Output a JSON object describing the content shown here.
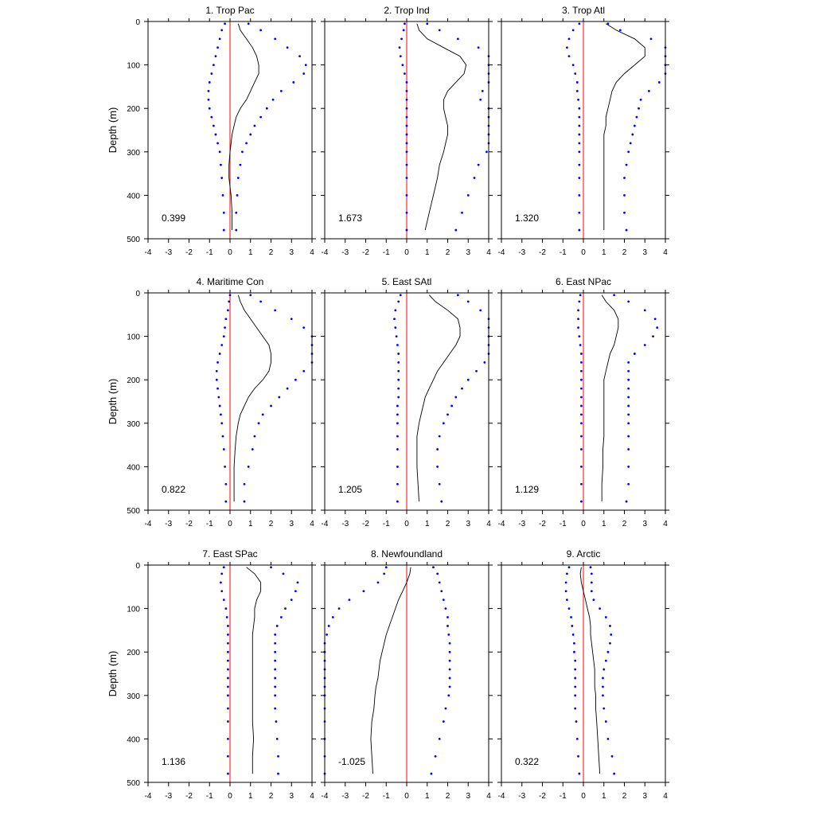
{
  "colors": {
    "mean_line": "#000000",
    "bound_dots": "#0000ff",
    "zero_line": "#ff0000",
    "axis": "#000000"
  },
  "shared_axes": {
    "ylabel": "Depth (m)",
    "xlim": [
      -4,
      4
    ],
    "ylim": [
      0,
      500
    ],
    "y_inverted": true,
    "xticks": [
      "-4",
      "-3",
      "-2",
      "-1",
      "0",
      "1",
      "2",
      "3",
      "4"
    ],
    "yticks": [
      "0",
      "100",
      "200",
      "300",
      "400",
      "500"
    ]
  },
  "chart_data": [
    {
      "type": "line",
      "title": "1. Trop Pac",
      "annotation": "0.399",
      "depth": [
        5,
        20,
        40,
        60,
        80,
        100,
        120,
        140,
        160,
        180,
        200,
        220,
        240,
        260,
        280,
        300,
        330,
        360,
        400,
        440,
        480
      ],
      "series": [
        {
          "values": [
            0.4,
            0.5,
            0.8,
            1.1,
            1.3,
            1.4,
            1.4,
            1.2,
            1.0,
            0.8,
            0.5,
            0.3,
            0.2,
            0.1,
            0.05,
            0.0,
            -0.05,
            -0.05,
            0.05,
            0.1,
            0.1
          ]
        },
        {
          "values": [
            -0.25,
            -0.4,
            -0.5,
            -0.6,
            -0.7,
            -0.8,
            -0.9,
            -1.0,
            -1.05,
            -1.05,
            -1.0,
            -0.9,
            -0.8,
            -0.7,
            -0.6,
            -0.5,
            -0.45,
            -0.4,
            -0.35,
            -0.3,
            -0.3
          ]
        },
        {
          "values": [
            0.9,
            1.5,
            2.2,
            2.8,
            3.4,
            3.7,
            3.6,
            3.1,
            2.5,
            2.1,
            1.8,
            1.5,
            1.2,
            1.0,
            0.8,
            0.6,
            0.5,
            0.4,
            0.35,
            0.3,
            0.3
          ]
        }
      ]
    },
    {
      "type": "line",
      "title": "2. Trop Ind",
      "annotation": "1.673",
      "depth": [
        5,
        20,
        40,
        60,
        80,
        100,
        120,
        140,
        160,
        180,
        200,
        220,
        240,
        260,
        280,
        300,
        330,
        360,
        400,
        440,
        480
      ],
      "series": [
        {
          "values": [
            0.5,
            0.6,
            1.0,
            1.8,
            2.6,
            2.9,
            2.8,
            2.4,
            2.0,
            1.8,
            1.8,
            1.9,
            2.0,
            2.0,
            1.9,
            1.8,
            1.6,
            1.5,
            1.3,
            1.1,
            0.9
          ]
        },
        {
          "values": [
            -0.1,
            -0.15,
            -0.25,
            -0.35,
            -0.3,
            -0.2,
            -0.1,
            0.0,
            0.0,
            0.0,
            0.0,
            0.0,
            0.0,
            0.0,
            0.0,
            0.0,
            0.0,
            0.0,
            0.0,
            0.0,
            0.0
          ]
        },
        {
          "values": [
            1.0,
            1.6,
            2.5,
            3.5,
            4.2,
            4.5,
            4.6,
            4.3,
            3.7,
            3.6,
            4.0,
            4.3,
            4.4,
            4.3,
            4.1,
            3.9,
            3.5,
            3.3,
            3.0,
            2.7,
            2.4
          ]
        }
      ]
    },
    {
      "type": "line",
      "title": "3. Trop Atl",
      "annotation": "1.320",
      "depth": [
        5,
        20,
        40,
        60,
        80,
        100,
        120,
        140,
        160,
        180,
        200,
        220,
        240,
        260,
        280,
        300,
        330,
        360,
        400,
        440,
        480
      ],
      "series": [
        {
          "values": [
            1.1,
            1.6,
            2.5,
            3.0,
            3.0,
            2.5,
            2.0,
            1.6,
            1.4,
            1.3,
            1.2,
            1.1,
            1.1,
            1.0,
            1.0,
            1.0,
            1.0,
            1.0,
            1.0,
            1.0,
            1.0
          ]
        },
        {
          "values": [
            -0.2,
            -0.5,
            -0.7,
            -0.8,
            -0.7,
            -0.5,
            -0.4,
            -0.3,
            -0.3,
            -0.25,
            -0.2,
            -0.2,
            -0.2,
            -0.2,
            -0.2,
            -0.2,
            -0.2,
            -0.2,
            -0.2,
            -0.2,
            -0.2
          ]
        },
        {
          "values": [
            1.2,
            1.8,
            3.3,
            4.2,
            4.5,
            4.4,
            4.0,
            3.7,
            3.2,
            2.8,
            2.7,
            2.6,
            2.5,
            2.4,
            2.3,
            2.2,
            2.1,
            2.0,
            2.0,
            2.0,
            2.1
          ]
        }
      ]
    },
    {
      "type": "line",
      "title": "4. Maritime Con",
      "annotation": "0.822",
      "depth": [
        5,
        20,
        40,
        60,
        80,
        100,
        120,
        140,
        160,
        180,
        200,
        220,
        240,
        260,
        280,
        300,
        330,
        360,
        400,
        440,
        480
      ],
      "series": [
        {
          "values": [
            0.4,
            0.5,
            0.7,
            1.0,
            1.3,
            1.6,
            1.9,
            2.0,
            2.0,
            1.9,
            1.6,
            1.2,
            0.9,
            0.7,
            0.5,
            0.4,
            0.3,
            0.25,
            0.2,
            0.2,
            0.2
          ]
        },
        {
          "values": [
            0.0,
            -0.05,
            -0.1,
            -0.2,
            -0.25,
            -0.3,
            -0.4,
            -0.5,
            -0.6,
            -0.65,
            -0.65,
            -0.6,
            -0.55,
            -0.5,
            -0.45,
            -0.4,
            -0.35,
            -0.3,
            -0.25,
            -0.2,
            -0.2
          ]
        },
        {
          "values": [
            1.0,
            1.5,
            2.2,
            3.0,
            3.6,
            4.2,
            4.4,
            4.3,
            4.0,
            3.6,
            3.2,
            2.8,
            2.4,
            2.0,
            1.6,
            1.4,
            1.2,
            1.1,
            0.9,
            0.7,
            0.7
          ]
        }
      ]
    },
    {
      "type": "line",
      "title": "5. East SAtl",
      "annotation": "1.205",
      "depth": [
        5,
        20,
        40,
        60,
        80,
        100,
        120,
        140,
        160,
        180,
        200,
        220,
        240,
        260,
        280,
        300,
        330,
        360,
        400,
        440,
        480
      ],
      "series": [
        {
          "values": [
            1.1,
            1.4,
            2.0,
            2.5,
            2.6,
            2.6,
            2.4,
            2.1,
            1.8,
            1.5,
            1.3,
            1.1,
            0.9,
            0.8,
            0.7,
            0.6,
            0.5,
            0.5,
            0.5,
            0.55,
            0.6
          ]
        },
        {
          "values": [
            -0.3,
            -0.4,
            -0.55,
            -0.6,
            -0.55,
            -0.5,
            -0.45,
            -0.4,
            -0.4,
            -0.4,
            -0.4,
            -0.4,
            -0.4,
            -0.45,
            -0.45,
            -0.45,
            -0.45,
            -0.45,
            -0.45,
            -0.45,
            -0.45
          ]
        },
        {
          "values": [
            2.5,
            3.0,
            3.6,
            4.2,
            4.6,
            4.6,
            4.4,
            4.2,
            3.8,
            3.4,
            3.0,
            2.7,
            2.4,
            2.2,
            2.0,
            1.8,
            1.6,
            1.5,
            1.5,
            1.6,
            1.7
          ]
        }
      ]
    },
    {
      "type": "line",
      "title": "6. East NPac",
      "annotation": "1.129",
      "depth": [
        5,
        20,
        40,
        60,
        80,
        100,
        120,
        140,
        160,
        180,
        200,
        220,
        240,
        260,
        280,
        300,
        330,
        360,
        400,
        440,
        480
      ],
      "series": [
        {
          "values": [
            0.9,
            1.1,
            1.5,
            1.7,
            1.7,
            1.6,
            1.5,
            1.3,
            1.2,
            1.1,
            1.0,
            1.0,
            1.0,
            1.0,
            1.0,
            1.0,
            1.0,
            0.95,
            0.95,
            0.9,
            0.9
          ]
        },
        {
          "values": [
            -0.15,
            -0.2,
            -0.25,
            -0.25,
            -0.25,
            -0.2,
            -0.15,
            -0.1,
            -0.1,
            -0.1,
            -0.1,
            -0.1,
            -0.1,
            -0.1,
            -0.1,
            -0.1,
            -0.1,
            -0.1,
            -0.1,
            -0.1,
            -0.1
          ]
        },
        {
          "values": [
            1.5,
            2.2,
            3.0,
            3.5,
            3.6,
            3.4,
            3.0,
            2.5,
            2.2,
            2.2,
            2.2,
            2.2,
            2.2,
            2.2,
            2.2,
            2.2,
            2.2,
            2.2,
            2.2,
            2.2,
            2.1
          ]
        }
      ]
    },
    {
      "type": "line",
      "title": "7. East SPac",
      "annotation": "1.136",
      "depth": [
        5,
        20,
        40,
        60,
        80,
        100,
        120,
        140,
        160,
        180,
        200,
        220,
        240,
        260,
        280,
        300,
        330,
        360,
        400,
        440,
        480
      ],
      "series": [
        {
          "values": [
            0.8,
            1.2,
            1.5,
            1.5,
            1.3,
            1.2,
            1.2,
            1.15,
            1.1,
            1.1,
            1.1,
            1.1,
            1.1,
            1.1,
            1.1,
            1.1,
            1.1,
            1.1,
            1.15,
            1.1,
            1.1
          ]
        },
        {
          "values": [
            -0.3,
            -0.4,
            -0.45,
            -0.4,
            -0.3,
            -0.2,
            -0.15,
            -0.1,
            -0.1,
            -0.1,
            -0.1,
            -0.1,
            -0.1,
            -0.1,
            -0.1,
            -0.1,
            -0.1,
            -0.1,
            -0.1,
            -0.1,
            -0.1
          ]
        },
        {
          "values": [
            2.0,
            2.6,
            3.3,
            3.2,
            3.0,
            2.7,
            2.5,
            2.3,
            2.2,
            2.2,
            2.2,
            2.2,
            2.2,
            2.2,
            2.2,
            2.2,
            2.2,
            2.25,
            2.3,
            2.35,
            2.35
          ]
        }
      ]
    },
    {
      "type": "line",
      "title": "8. Newfoundland",
      "annotation": "-1.025",
      "depth": [
        5,
        20,
        40,
        60,
        80,
        100,
        120,
        140,
        160,
        180,
        200,
        220,
        240,
        260,
        280,
        300,
        330,
        360,
        400,
        440,
        480
      ],
      "series": [
        {
          "values": [
            0.2,
            0.15,
            0.0,
            -0.2,
            -0.4,
            -0.55,
            -0.7,
            -0.85,
            -1.0,
            -1.1,
            -1.2,
            -1.3,
            -1.35,
            -1.4,
            -1.5,
            -1.55,
            -1.6,
            -1.7,
            -1.75,
            -1.7,
            -1.65
          ]
        },
        {
          "values": [
            -1.0,
            -1.1,
            -1.4,
            -2.1,
            -2.8,
            -3.3,
            -3.6,
            -3.8,
            -3.9,
            -4.0,
            -4.1,
            -4.1,
            -4.1,
            -4.1,
            -4.1,
            -4.1,
            -4.1,
            -4.1,
            -4.1,
            -4.1,
            -4.1
          ]
        },
        {
          "values": [
            1.3,
            1.5,
            1.6,
            1.7,
            1.8,
            1.9,
            2.0,
            2.0,
            2.05,
            2.1,
            2.1,
            2.1,
            2.1,
            2.1,
            2.1,
            2.05,
            1.9,
            1.8,
            1.6,
            1.4,
            1.2
          ]
        }
      ]
    },
    {
      "type": "line",
      "title": "9. Arctic",
      "annotation": "0.322",
      "depth": [
        5,
        20,
        40,
        60,
        80,
        100,
        120,
        140,
        160,
        180,
        200,
        220,
        240,
        260,
        280,
        300,
        330,
        360,
        400,
        440,
        480
      ],
      "series": [
        {
          "values": [
            -0.1,
            -0.15,
            -0.1,
            0.0,
            0.1,
            0.2,
            0.3,
            0.35,
            0.35,
            0.4,
            0.45,
            0.5,
            0.55,
            0.55,
            0.55,
            0.6,
            0.6,
            0.65,
            0.7,
            0.75,
            0.8
          ]
        },
        {
          "values": [
            -0.7,
            -0.8,
            -0.85,
            -0.85,
            -0.8,
            -0.7,
            -0.6,
            -0.55,
            -0.5,
            -0.45,
            -0.45,
            -0.4,
            -0.4,
            -0.4,
            -0.4,
            -0.4,
            -0.4,
            -0.35,
            -0.3,
            -0.25,
            -0.2
          ]
        },
        {
          "values": [
            0.35,
            0.4,
            0.4,
            0.4,
            0.5,
            0.8,
            1.1,
            1.3,
            1.35,
            1.3,
            1.2,
            1.1,
            1.0,
            0.95,
            0.95,
            0.95,
            1.0,
            1.1,
            1.2,
            1.4,
            1.5
          ]
        }
      ]
    }
  ]
}
